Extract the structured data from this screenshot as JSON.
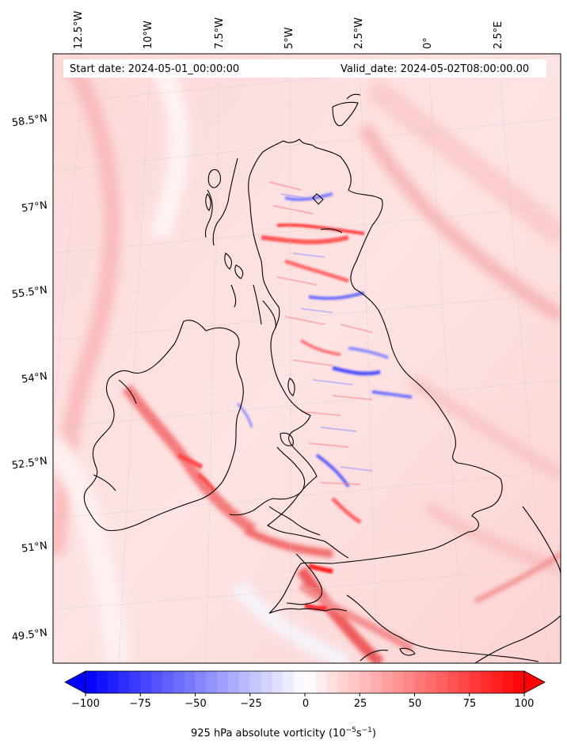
{
  "header": {
    "start_date": "Start date: 2024-05-01_00:00:00",
    "valid_date": "Valid_date: 2024-05-02T08:00:00.00"
  },
  "longitude_labels": [
    "12.5°W",
    "10°W",
    "7.5°W",
    "5°W",
    "2.5°W",
    "0°",
    "2.5°E"
  ],
  "latitude_labels": [
    "58.5°N",
    "57°N",
    "55.5°N",
    "54°N",
    "52.5°N",
    "51°N",
    "49.5°N"
  ],
  "colorbar": {
    "ticks": [
      "−100",
      "−75",
      "−50",
      "−25",
      "0",
      "25",
      "50",
      "75",
      "100"
    ],
    "min": -100,
    "max": 100,
    "negative_color": "#0000ff",
    "zero_color": "#ffffff",
    "positive_color": "#ff0000",
    "label_prefix": "925 hPa absolute vorticity (10",
    "label_exp1": "−5",
    "label_mid": "s",
    "label_exp2": "−1",
    "label_suffix": ")"
  },
  "colors": {
    "background_field": "#fde0e0",
    "coastline": "#000000",
    "gridline": "#c8c8c8"
  }
}
